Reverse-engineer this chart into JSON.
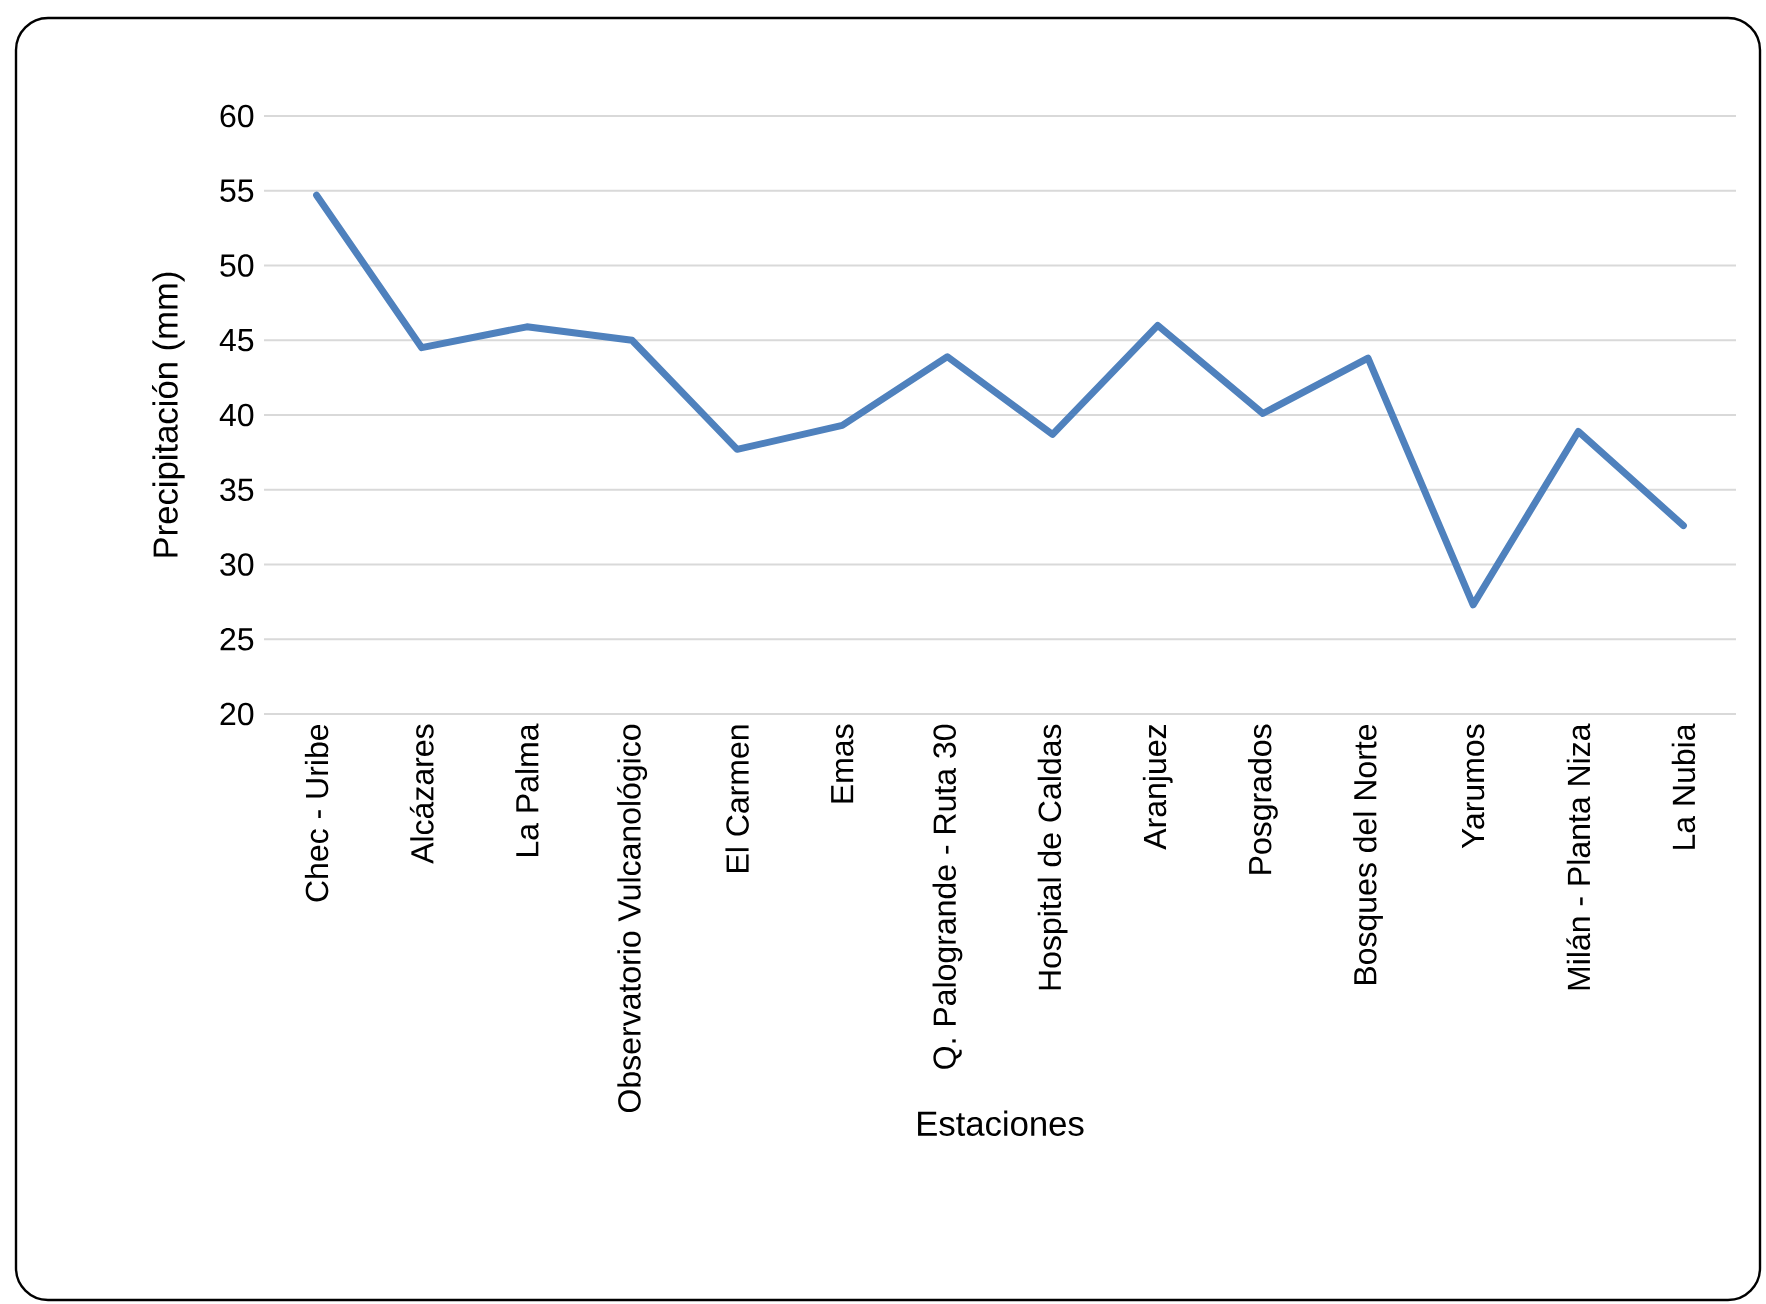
{
  "chart_data": {
    "type": "line",
    "xlabel": "Estaciones",
    "ylabel": "Precipitación (mm)",
    "categories": [
      "Chec - Uribe",
      "Alcázares",
      "La Palma",
      "Observatorio Vulcanológico",
      "El Carmen",
      "Emas",
      "Q. Palogrande - Ruta 30",
      "Hospital de Caldas",
      "Aranjuez",
      "Posgrados",
      "Bosques del Norte",
      "Yarumos",
      "Milán - Planta Niza",
      "La Nubia"
    ],
    "series": [
      {
        "color": "#4f81bd",
        "values": [
          54.7,
          44.5,
          45.9,
          45.0,
          37.7,
          39.3,
          43.9,
          38.7,
          46.0,
          40.1,
          43.8,
          27.3,
          38.9,
          32.6
        ]
      }
    ],
    "ylim": [
      20,
      60
    ],
    "yticks": [
      20,
      25,
      30,
      35,
      40,
      45,
      50,
      55,
      60
    ],
    "grid": "y",
    "marker": "none",
    "line_style": "solid"
  }
}
